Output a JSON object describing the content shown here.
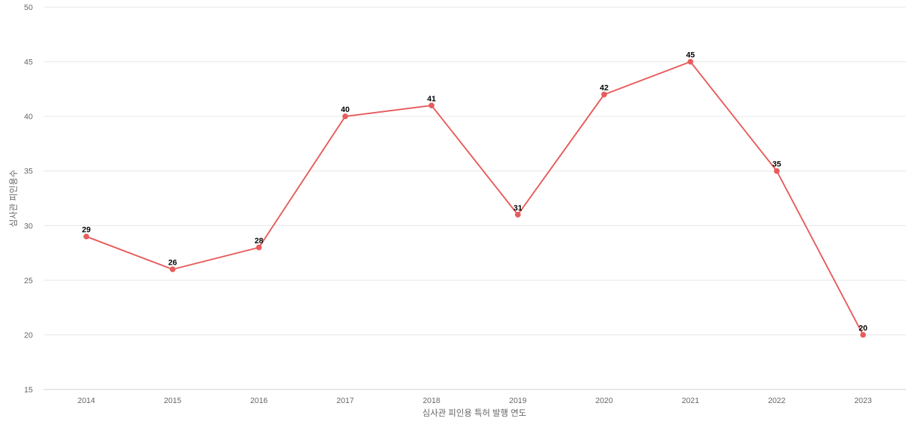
{
  "chart_data": {
    "type": "line",
    "title": "",
    "xlabel": "심사관 피인용 특허 발행 연도",
    "ylabel": "심사관 피인용수",
    "categories": [
      "2014",
      "2015",
      "2016",
      "2017",
      "2018",
      "2019",
      "2020",
      "2021",
      "2022",
      "2023"
    ],
    "series": [
      {
        "values": [
          29,
          26,
          28,
          40,
          41,
          31,
          42,
          45,
          35,
          20
        ],
        "color": "#e85c5c"
      }
    ],
    "ylim": [
      15,
      50
    ],
    "yticks": [
      15,
      20,
      25,
      30,
      35,
      40,
      45,
      50
    ],
    "grid": true,
    "data_labels": true,
    "legend": "none"
  }
}
